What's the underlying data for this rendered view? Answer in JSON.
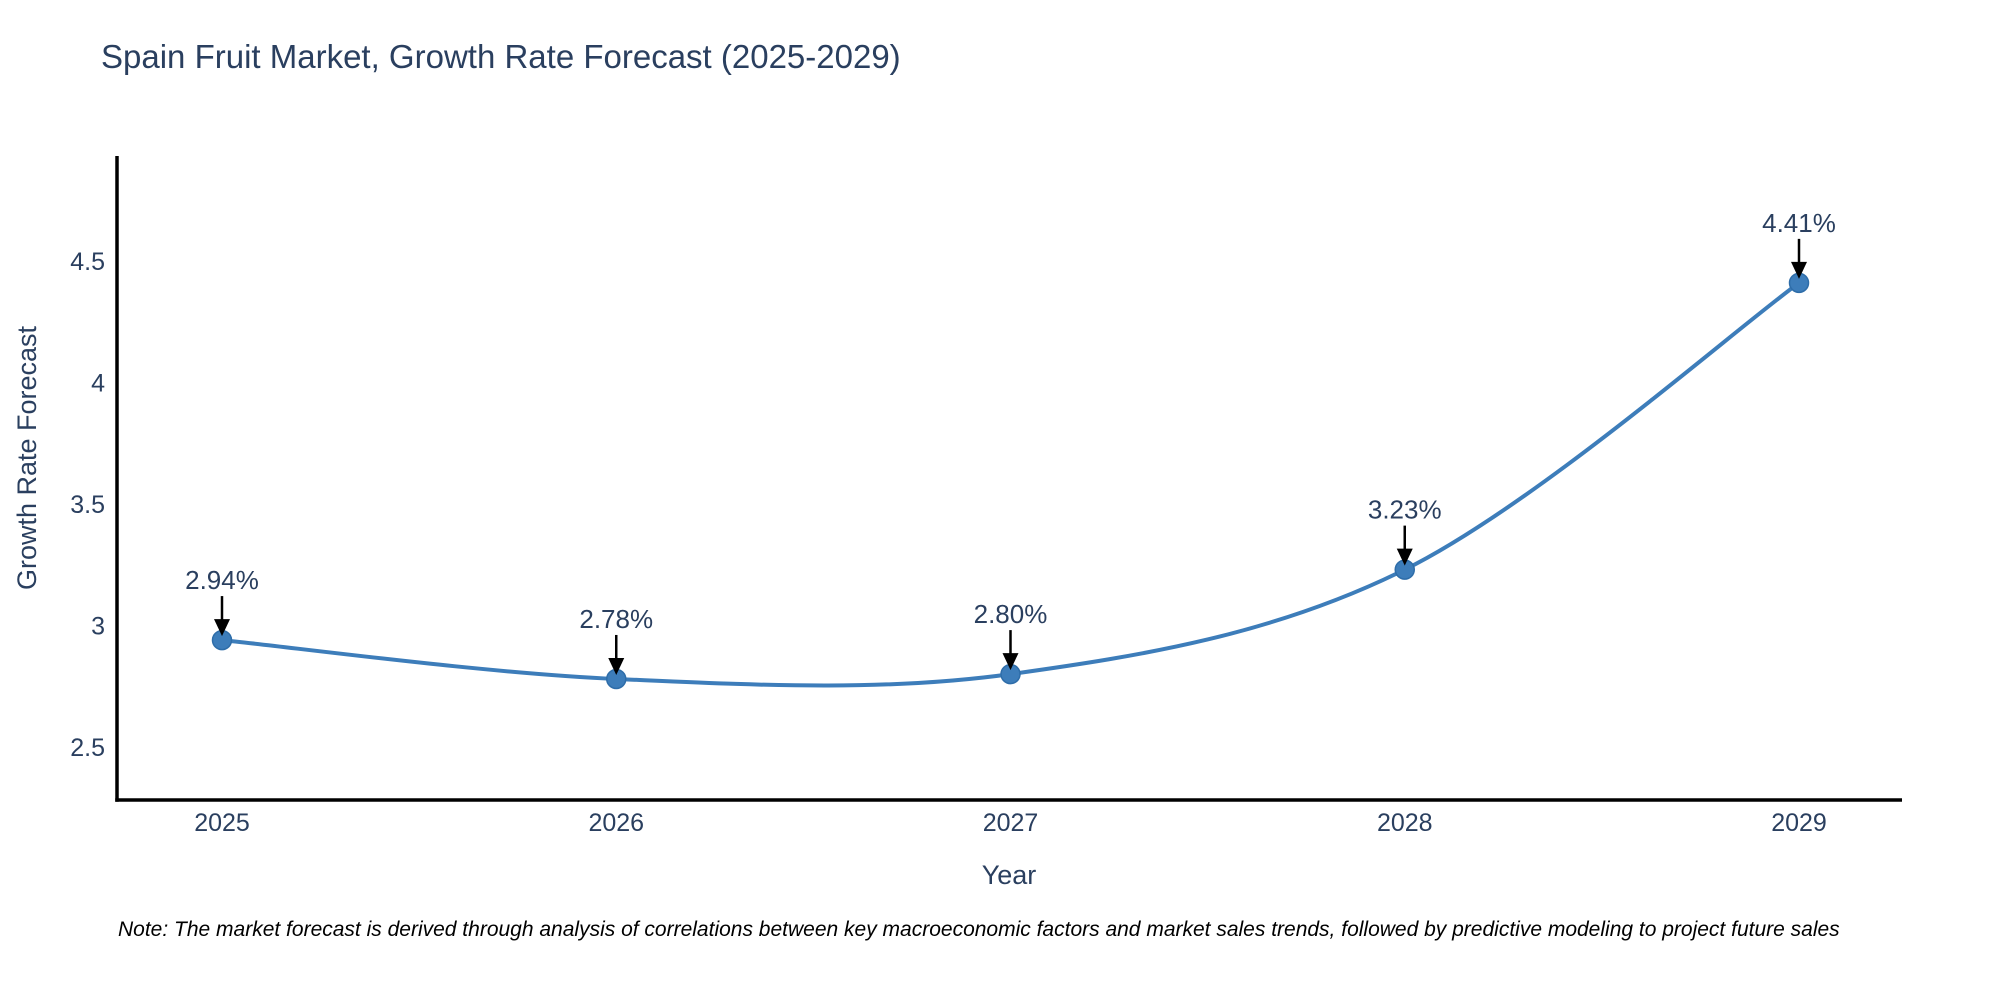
{
  "chart_data": {
    "type": "line",
    "title": "Spain Fruit Market, Growth Rate Forecast (2025-2029)",
    "xlabel": "Year",
    "ylabel": "Growth Rate Forecast",
    "categories": [
      "2025",
      "2026",
      "2027",
      "2028",
      "2029"
    ],
    "series": [
      {
        "name": "Growth Rate Forecast",
        "values": [
          2.94,
          2.78,
          2.8,
          3.23,
          4.41
        ]
      }
    ],
    "point_labels": [
      "2.94%",
      "2.78%",
      "2.80%",
      "3.23%",
      "4.41%"
    ],
    "y_ticks": [
      "2.5",
      "3",
      "3.5",
      "4",
      "4.5"
    ],
    "y_tick_values": [
      2.5,
      3.0,
      3.5,
      4.0,
      4.5
    ],
    "ylim": [
      2.28,
      4.92
    ],
    "grid": false,
    "legend_position": "none",
    "line_shape": "spline",
    "line_color": "#3d7dba",
    "marker_color": "#3d7dba",
    "marker_edge_color": "#2e6da9",
    "axis_line_color": "#000000",
    "text_color": "#2a3f5f",
    "annotation_color": "#2a3f5f",
    "arrow_color": "#000000"
  },
  "note": {
    "text": "Note: The market forecast is derived through analysis of correlations between key macroeconomic factors and market sales trends, followed by predictive modeling to project future sales"
  }
}
